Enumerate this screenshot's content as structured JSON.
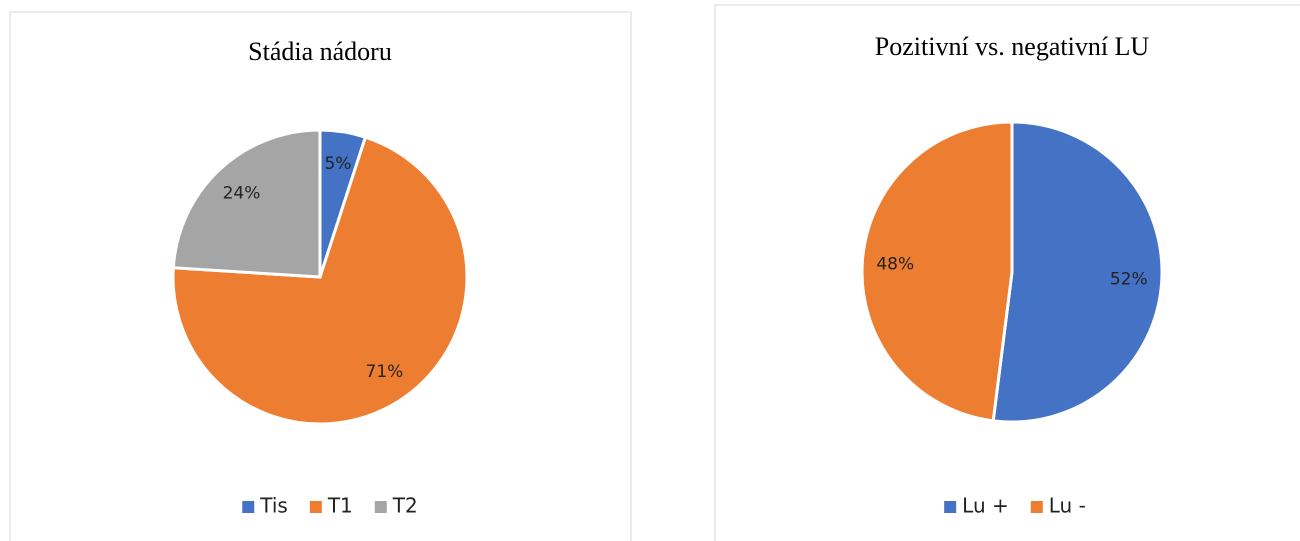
{
  "chart_data": [
    {
      "type": "pie",
      "title": "Stádia nádoru",
      "categories": [
        "Tis",
        "T1",
        "T2"
      ],
      "values": [
        5,
        71,
        24
      ],
      "value_labels": [
        "5%",
        "71%",
        "24%"
      ],
      "colors": [
        "#4472c4",
        "#ed7d31",
        "#a5a5a5"
      ],
      "legend": "bottom"
    },
    {
      "type": "pie",
      "title": "Pozitivní vs. negativní LU",
      "categories": [
        "Lu +",
        "Lu -"
      ],
      "values": [
        52,
        48
      ],
      "value_labels": [
        "52%",
        "48%"
      ],
      "colors": [
        "#4472c4",
        "#ed7d31"
      ],
      "legend": "bottom"
    }
  ]
}
